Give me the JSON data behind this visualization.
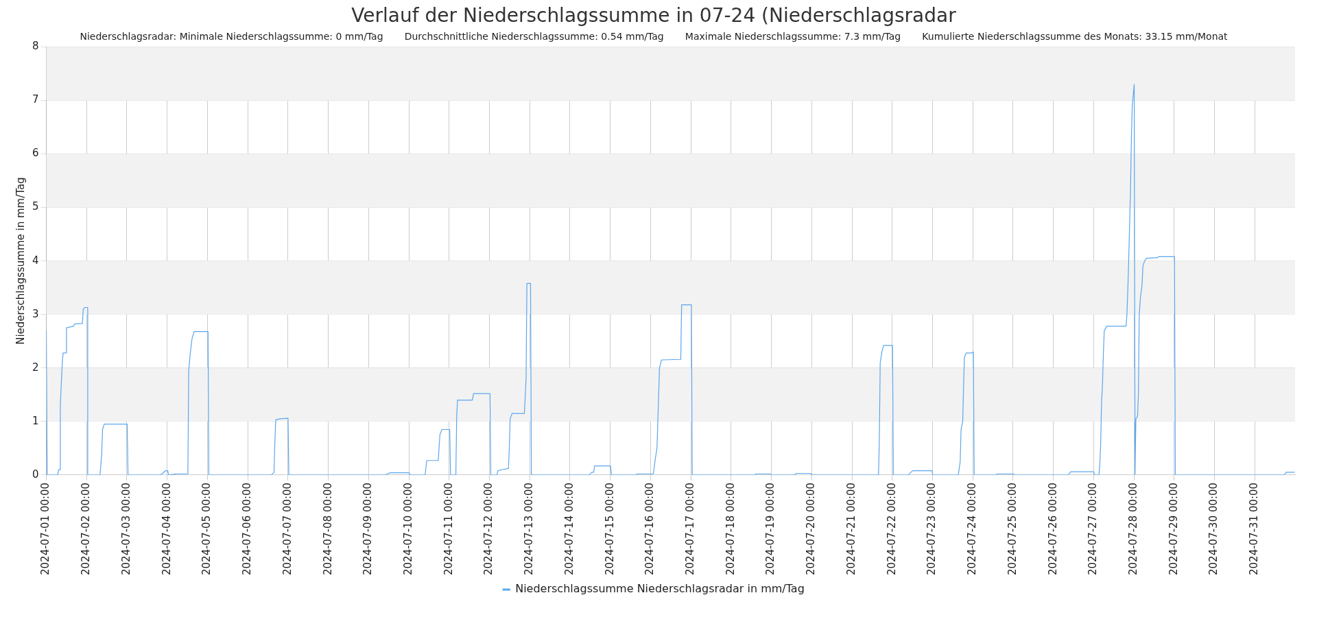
{
  "chart_data": {
    "type": "line",
    "title": "Verlauf der Niederschlagssumme in 07-24 (Niederschlagsradar",
    "subtitle": "Niederschlagsradar: Minimale Niederschlagssumme: 0 mm/Tag       Durchschnittliche Niederschlagssumme: 0.54 mm/Tag       Maximale Niederschlagssumme: 7.3 mm/Tag       Kumulierte Niederschlagssumme des Monats: 33.15 mm/Monat",
    "ylabel": "Niederschlagssumme in mm/Tag",
    "xlim": [
      "2024-07-01T00:00",
      "2024-08-01T00:00"
    ],
    "xticks": [
      {
        "value": "2024-07-01T00:00",
        "label": "2024-07-01 00:00"
      },
      {
        "value": "2024-07-02T00:00",
        "label": "2024-07-02 00:00"
      },
      {
        "value": "2024-07-03T00:00",
        "label": "2024-07-03 00:00"
      },
      {
        "value": "2024-07-04T00:00",
        "label": "2024-07-04 00:00"
      },
      {
        "value": "2024-07-05T00:00",
        "label": "2024-07-05 00:00"
      },
      {
        "value": "2024-07-06T00:00",
        "label": "2024-07-06 00:00"
      },
      {
        "value": "2024-07-07T00:00",
        "label": "2024-07-07 00:00"
      },
      {
        "value": "2024-07-08T00:00",
        "label": "2024-07-08 00:00"
      },
      {
        "value": "2024-07-09T00:00",
        "label": "2024-07-09 00:00"
      },
      {
        "value": "2024-07-10T00:00",
        "label": "2024-07-10 00:00"
      },
      {
        "value": "2024-07-11T00:00",
        "label": "2024-07-11 00:00"
      },
      {
        "value": "2024-07-12T00:00",
        "label": "2024-07-12 00:00"
      },
      {
        "value": "2024-07-13T00:00",
        "label": "2024-07-13 00:00"
      },
      {
        "value": "2024-07-14T00:00",
        "label": "2024-07-14 00:00"
      },
      {
        "value": "2024-07-15T00:00",
        "label": "2024-07-15 00:00"
      },
      {
        "value": "2024-07-16T00:00",
        "label": "2024-07-16 00:00"
      },
      {
        "value": "2024-07-17T00:00",
        "label": "2024-07-17 00:00"
      },
      {
        "value": "2024-07-18T00:00",
        "label": "2024-07-18 00:00"
      },
      {
        "value": "2024-07-19T00:00",
        "label": "2024-07-19 00:00"
      },
      {
        "value": "2024-07-20T00:00",
        "label": "2024-07-20 00:00"
      },
      {
        "value": "2024-07-21T00:00",
        "label": "2024-07-21 00:00"
      },
      {
        "value": "2024-07-22T00:00",
        "label": "2024-07-22 00:00"
      },
      {
        "value": "2024-07-23T00:00",
        "label": "2024-07-23 00:00"
      },
      {
        "value": "2024-07-24T00:00",
        "label": "2024-07-24 00:00"
      },
      {
        "value": "2024-07-25T00:00",
        "label": "2024-07-25 00:00"
      },
      {
        "value": "2024-07-26T00:00",
        "label": "2024-07-26 00:00"
      },
      {
        "value": "2024-07-27T00:00",
        "label": "2024-07-27 00:00"
      },
      {
        "value": "2024-07-28T00:00",
        "label": "2024-07-28 00:00"
      },
      {
        "value": "2024-07-29T00:00",
        "label": "2024-07-29 00:00"
      },
      {
        "value": "2024-07-30T00:00",
        "label": "2024-07-30 00:00"
      },
      {
        "value": "2024-07-31T00:00",
        "label": "2024-07-31 00:00"
      }
    ],
    "ylim": [
      0,
      8
    ],
    "yticks": [
      0,
      1,
      2,
      3,
      4,
      5,
      6,
      7,
      8
    ],
    "grid": true,
    "legend": "bottom",
    "marker": "none",
    "line_style": "solid",
    "bands": [
      {
        "axis": "y",
        "from": 1,
        "to": 2,
        "color": "#f2f2f2"
      },
      {
        "axis": "y",
        "from": 3,
        "to": 4,
        "color": "#f2f2f2"
      },
      {
        "axis": "y",
        "from": 5,
        "to": 6,
        "color": "#f2f2f2"
      },
      {
        "axis": "y",
        "from": 7,
        "to": 8,
        "color": "#f2f2f2"
      }
    ],
    "series": [
      {
        "name": "Niederschlagssumme Niederschlagsradar in mm/Tag",
        "color": "#5aa6ee",
        "x": [
          "2024-07-01T00:00",
          "2024-07-01T00:30",
          "2024-07-01T06:50",
          "2024-07-01T07:20",
          "2024-07-01T08:20",
          "2024-07-01T08:20",
          "2024-07-01T09:30",
          "2024-07-01T10:00",
          "2024-07-01T12:00",
          "2024-07-01T12:00",
          "2024-07-01T16:10",
          "2024-07-01T16:50",
          "2024-07-01T21:30",
          "2024-07-01T22:00",
          "2024-07-01T23:00",
          "2024-07-02T00:40",
          "2024-07-02T00:40",
          "2024-07-02T08:00",
          "2024-07-02T09:00",
          "2024-07-02T09:30",
          "2024-07-02T10:30",
          "2024-07-03T00:10",
          "2024-07-03T00:40",
          "2024-07-03T20:00",
          "2024-07-03T23:10",
          "2024-07-04T00:20",
          "2024-07-04T00:50",
          "2024-07-04T05:30",
          "2024-07-04T12:20",
          "2024-07-04T12:50",
          "2024-07-04T13:50",
          "2024-07-04T14:50",
          "2024-07-04T16:00",
          "2024-07-05T00:20",
          "2024-07-05T00:50",
          "2024-07-06T14:00",
          "2024-07-06T15:40",
          "2024-07-06T16:10",
          "2024-07-06T16:40",
          "2024-07-06T19:20",
          "2024-07-07T00:00",
          "2024-07-07T00:30",
          "2024-07-09T10:00",
          "2024-07-09T12:40",
          "2024-07-10T00:10",
          "2024-07-10T00:40",
          "2024-07-10T09:40",
          "2024-07-10T10:40",
          "2024-07-10T17:30",
          "2024-07-10T18:30",
          "2024-07-10T19:40",
          "2024-07-11T00:20",
          "2024-07-11T00:50",
          "2024-07-11T04:00",
          "2024-07-11T04:30",
          "2024-07-11T05:00",
          "2024-07-11T13:50",
          "2024-07-11T14:30",
          "2024-07-12T00:20",
          "2024-07-12T00:50",
          "2024-07-12T04:30",
          "2024-07-12T05:00",
          "2024-07-12T07:40",
          "2024-07-12T11:20",
          "2024-07-12T11:50",
          "2024-07-12T12:20",
          "2024-07-12T13:30",
          "2024-07-12T20:50",
          "2024-07-12T21:50",
          "2024-07-12T22:20",
          "2024-07-13T00:30",
          "2024-07-13T01:00",
          "2024-07-14T11:30",
          "2024-07-14T13:00",
          "2024-07-14T14:10",
          "2024-07-14T14:40",
          "2024-07-15T00:10",
          "2024-07-15T00:40",
          "2024-07-15T15:20",
          "2024-07-15T15:50",
          "2024-07-16T01:40",
          "2024-07-16T02:50",
          "2024-07-16T03:50",
          "2024-07-16T04:20",
          "2024-07-16T04:50",
          "2024-07-16T05:20",
          "2024-07-16T06:30",
          "2024-07-16T18:00",
          "2024-07-16T18:30",
          "2024-07-17T00:20",
          "2024-07-17T00:50",
          "2024-07-18T14:00",
          "2024-07-18T15:00",
          "2024-07-18T23:20",
          "2024-07-18T23:50",
          "2024-07-19T13:30",
          "2024-07-19T15:00",
          "2024-07-19T23:30",
          "2024-07-20T00:00",
          "2024-07-21T15:50",
          "2024-07-21T16:20",
          "2024-07-21T16:50",
          "2024-07-21T17:50",
          "2024-07-21T18:50",
          "2024-07-22T00:10",
          "2024-07-22T00:40",
          "2024-07-22T09:30",
          "2024-07-22T11:10",
          "2024-07-22T12:10",
          "2024-07-22T23:40",
          "2024-07-23T00:10",
          "2024-07-23T15:20",
          "2024-07-23T16:30",
          "2024-07-23T17:00",
          "2024-07-23T18:00",
          "2024-07-23T18:30",
          "2024-07-23T19:00",
          "2024-07-23T20:10",
          "2024-07-23T23:20",
          "2024-07-24T00:20",
          "2024-07-24T00:50",
          "2024-07-24T13:50",
          "2024-07-24T14:30",
          "2024-07-25T00:20",
          "2024-07-25T00:50",
          "2024-07-26T08:50",
          "2024-07-26T10:20",
          "2024-07-27T00:00",
          "2024-07-27T00:30",
          "2024-07-27T03:10",
          "2024-07-27T03:40",
          "2024-07-27T04:10",
          "2024-07-27T04:40",
          "2024-07-27T05:20",
          "2024-07-27T05:50",
          "2024-07-27T06:20",
          "2024-07-27T07:50",
          "2024-07-27T19:20",
          "2024-07-27T19:50",
          "2024-07-27T20:30",
          "2024-07-27T21:00",
          "2024-07-27T21:30",
          "2024-07-27T22:00",
          "2024-07-27T22:30",
          "2024-07-27T23:00",
          "2024-07-28T00:10",
          "2024-07-28T00:40",
          "2024-07-28T01:10",
          "2024-07-28T02:10",
          "2024-07-28T02:40",
          "2024-07-28T03:10",
          "2024-07-28T03:50",
          "2024-07-28T04:50",
          "2024-07-28T05:20",
          "2024-07-28T06:20",
          "2024-07-28T07:30",
          "2024-07-28T13:40",
          "2024-07-28T14:50",
          "2024-07-29T00:10",
          "2024-07-29T00:40",
          "2024-07-31T17:40",
          "2024-07-31T18:40",
          "2024-07-31T23:50"
        ],
        "values": [
          2.7,
          0,
          0,
          0.1,
          0.1,
          1.3,
          2.1,
          2.28,
          2.28,
          2.75,
          2.78,
          2.82,
          2.83,
          3.1,
          3.13,
          3.13,
          0,
          0,
          0.4,
          0.85,
          0.95,
          0.95,
          0,
          0,
          0.08,
          0.08,
          0,
          0.02,
          0.02,
          1.95,
          2.3,
          2.55,
          2.68,
          2.68,
          0,
          0,
          0.05,
          0.6,
          1.03,
          1.05,
          1.06,
          0,
          0,
          0.04,
          0.04,
          0,
          0,
          0.27,
          0.27,
          0.75,
          0.85,
          0.85,
          0,
          0,
          1.1,
          1.4,
          1.4,
          1.52,
          1.52,
          0,
          0,
          0.08,
          0.1,
          0.12,
          0.5,
          1.05,
          1.15,
          1.15,
          1.8,
          3.58,
          3.58,
          0,
          0,
          0.05,
          0.05,
          0.17,
          0.17,
          0,
          0,
          0.02,
          0.02,
          0.3,
          0.5,
          1.0,
          1.5,
          2.0,
          2.15,
          2.16,
          3.18,
          3.18,
          0,
          0,
          0.02,
          0.02,
          0,
          0,
          0.03,
          0.03,
          0,
          0,
          0.7,
          2.1,
          2.3,
          2.42,
          2.42,
          0,
          0,
          0.05,
          0.08,
          0.08,
          0,
          0,
          0.25,
          0.85,
          1.0,
          1.65,
          2.2,
          2.28,
          2.28,
          2.3,
          0,
          0,
          0.02,
          0.02,
          0,
          0,
          0.06,
          0.06,
          0,
          0,
          0.2,
          0.55,
          1.3,
          1.75,
          2.3,
          2.7,
          2.78,
          2.78,
          3.0,
          3.6,
          4.15,
          4.75,
          5.4,
          6.3,
          6.9,
          7.3,
          0,
          1.05,
          1.1,
          1.5,
          3.0,
          3.3,
          3.55,
          3.9,
          4.0,
          4.05,
          4.06,
          4.08,
          4.08,
          0,
          0,
          0.05,
          0.05
        ]
      }
    ]
  }
}
